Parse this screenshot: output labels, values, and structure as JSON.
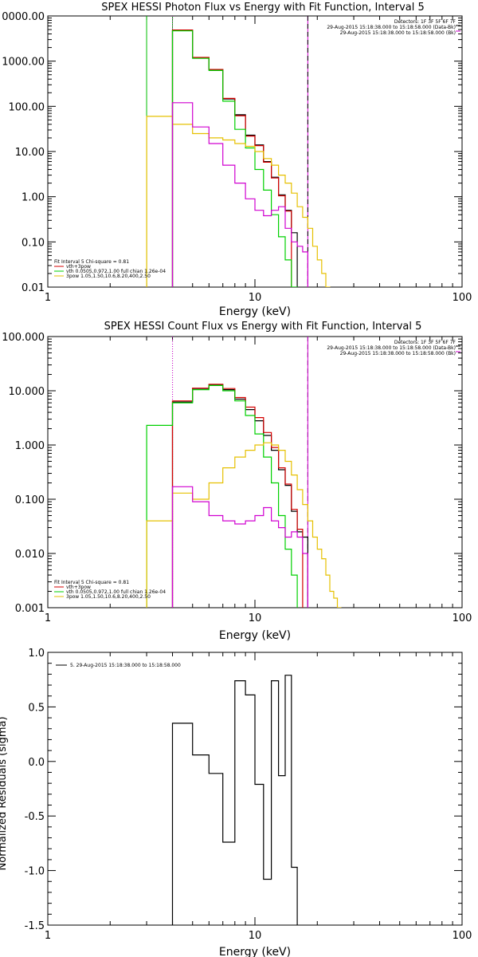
{
  "chart_data": [
    {
      "type": "line",
      "title": "SPEX HESSI Photon Flux vs Energy with Fit Function, Interval 5",
      "xlabel": "Energy (keV)",
      "ylabel": "",
      "xscale": "log",
      "yscale": "log",
      "xlim": [
        1,
        100
      ],
      "ylim": [
        0.01,
        10000
      ],
      "xtick_labels": [
        "1",
        "10",
        "100"
      ],
      "ytick_labels": [
        "0.01",
        "0.10",
        "1.00",
        "10.00",
        "100.00",
        "1000.00",
        "0000.00"
      ],
      "info": [
        "Detectors: 1F 3F 5F 6F 7F",
        "29-Aug-2015 15:18:38.000 to 15:18:58.000 (Data-Bk)",
        "29-Aug-2015 15:18:38.000 to 15:18:58.000 (Bk)"
      ],
      "legend_header": "Fit Interval  5    Chi-square = 0.81",
      "legend": [
        {
          "label": "vth+3pow",
          "color": "#d40000"
        },
        {
          "label": "vth 0.0505,0.972,1.00  full chian 1.26e-04",
          "color": "#00d000"
        },
        {
          "label": "3pow 1.05,1.50,10.6,8.20,400,2.50",
          "color": "#e6c000"
        }
      ],
      "vlines": [
        {
          "x": 3.0,
          "color": "#00c000",
          "style": "solid"
        },
        {
          "x": 4.0,
          "color": "#00c000",
          "style": "solid"
        },
        {
          "x": 4.0,
          "color": "#d000d0",
          "style": "dotted"
        },
        {
          "x": 18.0,
          "color": "#d000d0",
          "style": "solid"
        },
        {
          "x": 18.0,
          "color": "#000000",
          "style": "dashed"
        }
      ],
      "series": [
        {
          "color": "#000000",
          "edges": [
            4,
            5,
            6,
            7,
            8,
            9,
            10,
            11,
            12,
            13,
            14,
            15,
            16,
            17,
            18
          ],
          "values": [
            4800,
            1200,
            650,
            145,
            65,
            23,
            14,
            6.0,
            2.7,
            1.1,
            0.5,
            0.16,
            null,
            null
          ]
        },
        {
          "color": "#d40000",
          "edges": [
            4,
            5,
            6,
            7,
            8,
            9,
            10,
            11,
            12,
            13,
            14,
            15,
            16,
            17,
            18
          ],
          "values": [
            4900,
            1210,
            655,
            150,
            62,
            22,
            13.5,
            5.8,
            2.6,
            1.05,
            0.48,
            null,
            null,
            null
          ]
        },
        {
          "color": "#00d000",
          "edges": [
            4,
            5,
            6,
            7,
            8,
            9,
            10,
            11,
            12,
            13,
            14,
            15,
            16,
            17,
            18
          ],
          "values": [
            4700,
            1150,
            620,
            130,
            31,
            12,
            4.0,
            1.4,
            0.4,
            0.13,
            0.04,
            0.01,
            null,
            null
          ]
        },
        {
          "color": "#e6c000",
          "edges": [
            3,
            4,
            5,
            6,
            7,
            8,
            9,
            10,
            11,
            12,
            13,
            14,
            15,
            16,
            17,
            18,
            19,
            20,
            21,
            22,
            23,
            24,
            25,
            26
          ],
          "values": [
            60,
            40,
            25,
            20,
            18,
            15,
            13,
            10,
            7.0,
            5.0,
            3.0,
            2.0,
            1.2,
            0.6,
            0.35,
            0.2,
            0.08,
            0.04,
            0.02,
            0.01,
            null,
            null,
            null
          ]
        },
        {
          "color": "#d000d0",
          "edges": [
            4,
            5,
            6,
            7,
            8,
            9,
            10,
            11,
            12,
            13,
            14,
            15,
            16,
            17,
            18
          ],
          "values": [
            120,
            35,
            15,
            5.0,
            2.0,
            0.9,
            0.5,
            0.38,
            0.5,
            0.6,
            0.2,
            0.1,
            0.08,
            0.06
          ]
        }
      ]
    },
    {
      "type": "line",
      "title": "SPEX HESSI Count Flux vs Energy with Fit Function, Interval 5",
      "xlabel": "Energy (keV)",
      "ylabel": "",
      "xscale": "log",
      "yscale": "log",
      "xlim": [
        1,
        100
      ],
      "ylim": [
        0.001,
        100
      ],
      "xtick_labels": [
        "1",
        "10",
        "100"
      ],
      "ytick_labels": [
        "0.001",
        "0.010",
        "0.100",
        "1.000",
        "10.000",
        "100.000"
      ],
      "info": [
        "Detectors: 1F 3F 5F 6F 7F",
        "29-Aug-2015 15:18:38.000 to 15:18:58.000 (Data-Bk)",
        "29-Aug-2015 15:18:38.000 to 15:18:58.000 (Bk)"
      ],
      "legend_header": "Fit Interval  5    Chi-square = 0.81",
      "legend": [
        {
          "label": "vth+3pow",
          "color": "#d40000"
        },
        {
          "label": "vth 0.0505,0.972,1.00  full chian 1.26e-04",
          "color": "#00d000"
        },
        {
          "label": "3pow 1.05,1.50,10.6,8.20,400,2.50",
          "color": "#e6c000"
        }
      ],
      "vlines": [
        {
          "x": 4.0,
          "color": "#000000",
          "style": "dotted"
        },
        {
          "x": 4.0,
          "color": "#d000d0",
          "style": "dotted"
        },
        {
          "x": 18.0,
          "color": "#000000",
          "style": "dashed"
        },
        {
          "x": 18.0,
          "color": "#d000d0",
          "style": "solid"
        }
      ],
      "series": [
        {
          "color": "#000000",
          "edges": [
            4,
            5,
            6,
            7,
            8,
            9,
            10,
            11,
            12,
            13,
            14,
            15,
            16,
            17,
            18
          ],
          "values": [
            6.2,
            11.0,
            13.0,
            10.5,
            7.0,
            4.5,
            2.8,
            1.5,
            0.8,
            0.35,
            0.18,
            0.06,
            0.025,
            0.02
          ]
        },
        {
          "color": "#d40000",
          "edges": [
            4,
            5,
            6,
            7,
            8,
            9,
            10,
            11,
            12,
            13,
            14,
            15,
            16,
            17,
            18
          ],
          "values": [
            6.5,
            11.2,
            13.2,
            11.0,
            7.5,
            5.0,
            3.2,
            1.7,
            0.9,
            0.38,
            0.19,
            0.065,
            0.028,
            null
          ]
        },
        {
          "color": "#00d000",
          "edges": [
            3,
            4,
            5,
            6,
            7,
            8,
            9,
            10,
            11,
            12,
            13,
            14,
            15,
            16
          ],
          "values": [
            2.3,
            6.0,
            10.5,
            12.5,
            10.0,
            6.5,
            3.5,
            1.6,
            0.6,
            0.2,
            0.05,
            0.012,
            0.004
          ]
        },
        {
          "color": "#e6c000",
          "edges": [
            3,
            4,
            5,
            6,
            7,
            8,
            9,
            10,
            11,
            12,
            13,
            14,
            15,
            16,
            17,
            18,
            19,
            20,
            21,
            22,
            23,
            24,
            25,
            26,
            27
          ],
          "values": [
            0.04,
            0.13,
            0.1,
            0.2,
            0.38,
            0.6,
            0.8,
            1.0,
            1.1,
            1.0,
            0.8,
            0.5,
            0.28,
            0.15,
            0.08,
            0.04,
            0.02,
            0.012,
            0.008,
            0.004,
            0.002,
            0.0015,
            0.001,
            0.0008
          ]
        },
        {
          "color": "#d000d0",
          "edges": [
            4,
            5,
            6,
            7,
            8,
            9,
            10,
            11,
            12,
            13,
            14,
            15,
            16,
            17,
            18
          ],
          "values": [
            0.17,
            0.09,
            0.05,
            0.04,
            0.035,
            0.04,
            0.05,
            0.07,
            0.04,
            0.03,
            0.02,
            0.025,
            0.02,
            0.01
          ]
        }
      ]
    },
    {
      "type": "line",
      "title": "",
      "xlabel": "Energy (keV)",
      "ylabel": "Normalized Residuals (sigma)",
      "xscale": "log",
      "yscale": "linear",
      "xlim": [
        1,
        100
      ],
      "ylim": [
        -1.5,
        1.0
      ],
      "xtick_labels": [
        "1",
        "10",
        "100"
      ],
      "ytick_labels": [
        "-1.5",
        "-1.0",
        "-0.5",
        "0.0",
        "0.5",
        "1.0"
      ],
      "legend": [
        {
          "label": "5. 29-Aug-2015 15:18:38.000 to 15:18:58.000",
          "color": "#000000"
        }
      ],
      "series": [
        {
          "color": "#000000",
          "edges": [
            4,
            5,
            6,
            7,
            8,
            9,
            10,
            11,
            12,
            13,
            14,
            15,
            16,
            17,
            18
          ],
          "values": [
            0.35,
            0.06,
            -0.11,
            -0.74,
            0.74,
            0.61,
            -0.21,
            -1.08,
            0.74,
            -0.13,
            0.79,
            -0.97,
            null,
            null
          ]
        }
      ]
    }
  ]
}
